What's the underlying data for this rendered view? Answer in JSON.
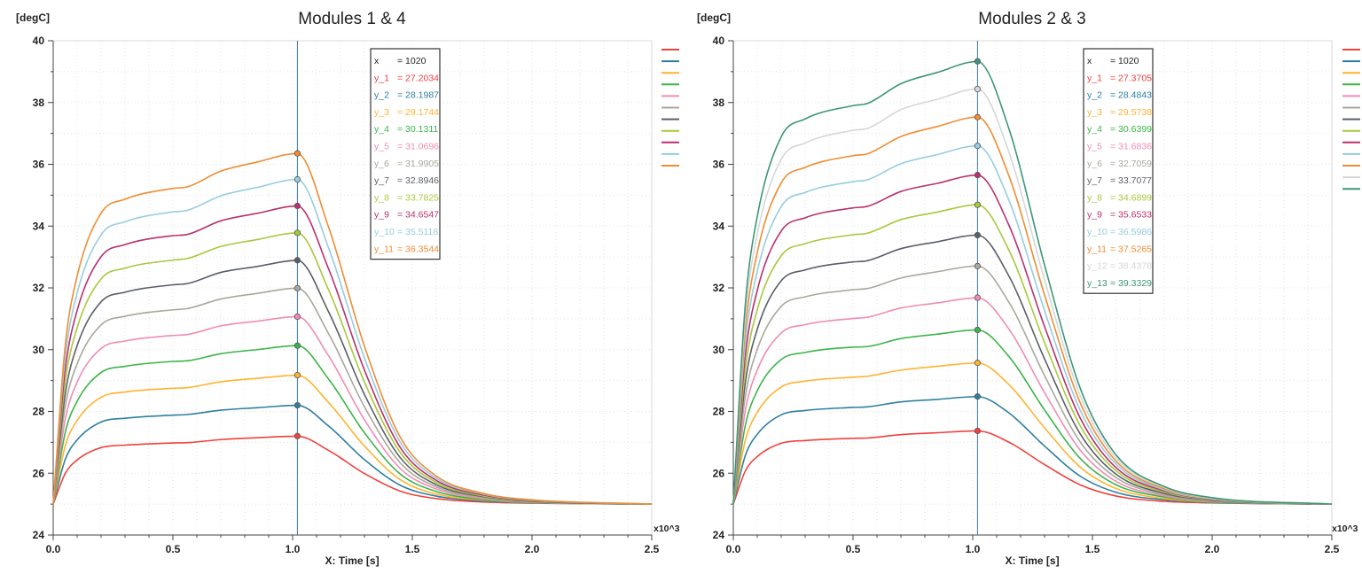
{
  "chart_data": [
    {
      "type": "line",
      "title": "Modules 1 & 4",
      "ylabel": "[degC]",
      "xlabel": "X: Time [s]",
      "x_multiplier": "x10^3",
      "xlim": [
        0,
        2500
      ],
      "ylim": [
        24,
        40
      ],
      "xticks": [
        "0.0",
        "0.5",
        "1.0",
        "1.5",
        "2.0",
        "2.5"
      ],
      "yticks": [
        "24",
        "26",
        "28",
        "30",
        "32",
        "34",
        "36",
        "38",
        "40"
      ],
      "grid": true,
      "legend_placement": "right",
      "cursor": {
        "x_label": "x",
        "x_value": "= 1020",
        "x": 1020
      },
      "x": [
        0,
        50,
        100,
        200,
        300,
        500,
        560,
        700,
        850,
        1020,
        1150,
        1300,
        1450,
        1600,
        1800,
        2000,
        2500
      ],
      "series": [
        {
          "name": "y_1",
          "color": "#f0413c",
          "cursor_value": "= 27.2034",
          "values": [
            25,
            25.99,
            26.43,
            26.83,
            26.91,
            26.98,
            26.99,
            27.09,
            27.15,
            27.2,
            26.74,
            25.99,
            25.42,
            25.18,
            25.07,
            25.03,
            25
          ]
        },
        {
          "name": "y_2",
          "color": "#2e7fa0",
          "cursor_value": "= 28.1987",
          "values": [
            25,
            26.44,
            27.08,
            27.66,
            27.78,
            27.88,
            27.9,
            28.04,
            28.12,
            28.2,
            27.53,
            26.44,
            25.61,
            25.26,
            25.1,
            25.04,
            25
          ]
        },
        {
          "name": "y_3",
          "color": "#ffb32e",
          "cursor_value": "= 29.1744",
          "values": [
            25,
            26.88,
            27.71,
            28.46,
            28.63,
            28.75,
            28.77,
            28.96,
            29.07,
            29.17,
            28.29,
            26.88,
            25.79,
            25.33,
            25.13,
            25.05,
            25
          ]
        },
        {
          "name": "y_4",
          "color": "#3cb449",
          "cursor_value": "= 30.1311",
          "values": [
            25,
            27.31,
            28.33,
            29.26,
            29.46,
            29.62,
            29.64,
            29.87,
            30.0,
            30.13,
            29.05,
            27.31,
            25.97,
            25.41,
            25.15,
            25.06,
            25
          ]
        },
        {
          "name": "y_5",
          "color": "#f08cb4",
          "cursor_value": "= 31.0696",
          "values": [
            25,
            27.73,
            28.95,
            30.04,
            30.28,
            30.46,
            30.49,
            30.77,
            30.92,
            31.07,
            29.8,
            27.73,
            26.15,
            25.49,
            25.18,
            25.07,
            25
          ]
        },
        {
          "name": "y_6",
          "color": "#a8a89c",
          "cursor_value": "= 31.9905",
          "values": [
            25,
            28.15,
            29.54,
            30.8,
            31.08,
            31.29,
            31.33,
            31.64,
            31.82,
            31.99,
            30.52,
            28.15,
            26.33,
            25.56,
            25.21,
            25.08,
            25
          ]
        },
        {
          "name": "y_7",
          "color": "#5a5f68",
          "cursor_value": "= 32.8946",
          "values": [
            25,
            28.55,
            30.13,
            31.55,
            31.86,
            32.1,
            32.14,
            32.5,
            32.69,
            32.89,
            31.23,
            28.55,
            26.5,
            25.63,
            25.24,
            25.09,
            25
          ]
        },
        {
          "name": "y_8",
          "color": "#a8c83c",
          "cursor_value": "= 33.7825",
          "values": [
            25,
            28.95,
            30.71,
            32.29,
            32.64,
            32.9,
            32.95,
            33.34,
            33.56,
            33.78,
            31.94,
            28.95,
            26.67,
            25.7,
            25.26,
            25.11,
            25
          ]
        },
        {
          "name": "y_9",
          "color": "#b8306e",
          "cursor_value": "= 34.6547",
          "values": [
            25,
            29.34,
            31.27,
            33.01,
            33.4,
            33.69,
            33.73,
            34.17,
            34.41,
            34.65,
            32.62,
            29.34,
            26.83,
            25.77,
            25.29,
            25.12,
            25
          ]
        },
        {
          "name": "y_10",
          "color": "#96cde0",
          "cursor_value": "= 35.5118",
          "values": [
            25,
            29.73,
            31.83,
            33.72,
            34.14,
            34.46,
            34.51,
            34.98,
            35.25,
            35.51,
            33.3,
            29.73,
            27.0,
            25.84,
            25.32,
            25.13,
            25
          ]
        },
        {
          "name": "y_11",
          "color": "#f08c32",
          "cursor_value": "= 36.3544",
          "values": [
            25,
            30.11,
            32.38,
            34.42,
            34.87,
            35.22,
            35.27,
            35.78,
            36.07,
            36.35,
            33.97,
            30.11,
            27.16,
            25.91,
            25.34,
            25.14,
            25
          ]
        }
      ]
    },
    {
      "type": "line",
      "title": "Modules 2 & 3",
      "ylabel": "[degC]",
      "xlabel": "X: Time [s]",
      "x_multiplier": "x10^3",
      "xlim": [
        0,
        2500
      ],
      "ylim": [
        24,
        40
      ],
      "xticks": [
        "0.0",
        "0.5",
        "1.0",
        "1.5",
        "2.0",
        "2.5"
      ],
      "yticks": [
        "24",
        "26",
        "28",
        "30",
        "32",
        "34",
        "36",
        "38",
        "40"
      ],
      "grid": true,
      "legend_placement": "right",
      "cursor": {
        "x_label": "x",
        "x_value": "= 1020",
        "x": 1020
      },
      "x": [
        0,
        50,
        100,
        200,
        300,
        500,
        560,
        700,
        850,
        1020,
        1150,
        1300,
        1450,
        1600,
        1800,
        2000,
        2500
      ],
      "series": [
        {
          "name": "y_1",
          "color": "#f0413c",
          "cursor_value": "= 27.3705",
          "values": [
            25,
            26.07,
            26.54,
            26.97,
            27.06,
            27.13,
            27.14,
            27.25,
            27.31,
            27.37,
            27.01,
            26.28,
            25.62,
            25.26,
            25.09,
            25.04,
            25
          ]
        },
        {
          "name": "y_2",
          "color": "#2e7fa0",
          "cursor_value": "= 28.4843",
          "values": [
            25,
            26.57,
            27.26,
            27.89,
            28.03,
            28.13,
            28.15,
            28.31,
            28.39,
            28.48,
            27.96,
            26.88,
            25.9,
            25.38,
            25.14,
            25.05,
            25
          ]
        },
        {
          "name": "y_3",
          "color": "#ffb32e",
          "cursor_value": "= 29.5738",
          "values": [
            25,
            27.06,
            27.97,
            28.79,
            28.98,
            29.11,
            29.14,
            29.34,
            29.46,
            29.57,
            28.88,
            27.47,
            26.19,
            25.5,
            25.18,
            25.07,
            25
          ]
        },
        {
          "name": "y_4",
          "color": "#3cb449",
          "cursor_value": "= 30.6399",
          "values": [
            25,
            27.54,
            28.67,
            29.68,
            29.91,
            30.08,
            30.1,
            30.36,
            30.5,
            30.64,
            29.79,
            28.05,
            26.47,
            25.62,
            25.23,
            25.08,
            25
          ]
        },
        {
          "name": "y_5",
          "color": "#f08cb4",
          "cursor_value": "= 31.6836",
          "values": [
            25,
            28.01,
            29.34,
            30.54,
            30.81,
            31.01,
            31.05,
            31.35,
            31.51,
            31.68,
            30.68,
            28.61,
            26.74,
            25.73,
            25.27,
            25.1,
            25
          ]
        },
        {
          "name": "y_6",
          "color": "#a8a89c",
          "cursor_value": "= 32.7059",
          "values": [
            25,
            28.47,
            30.01,
            31.4,
            31.71,
            31.94,
            31.98,
            32.32,
            32.52,
            32.71,
            31.55,
            29.16,
            27.0,
            25.85,
            25.31,
            25.12,
            25
          ]
        },
        {
          "name": "y_7",
          "color": "#5a5f68",
          "cursor_value": "= 33.7077",
          "values": [
            25,
            28.92,
            30.66,
            32.23,
            32.58,
            32.84,
            32.88,
            33.27,
            33.49,
            33.71,
            32.4,
            29.7,
            27.26,
            25.96,
            25.35,
            25.13,
            25
          ]
        },
        {
          "name": "y_8",
          "color": "#a8c83c",
          "cursor_value": "= 34.6899",
          "values": [
            25,
            29.36,
            31.3,
            33.04,
            33.43,
            33.72,
            33.77,
            34.21,
            34.45,
            34.69,
            33.24,
            30.23,
            27.52,
            26.07,
            25.39,
            25.15,
            25
          ]
        },
        {
          "name": "y_9",
          "color": "#b8306e",
          "cursor_value": "= 35.6533",
          "values": [
            25,
            29.79,
            31.92,
            33.84,
            34.27,
            34.59,
            34.64,
            35.12,
            35.38,
            35.65,
            34.05,
            30.75,
            27.77,
            26.17,
            25.43,
            25.16,
            25
          ]
        },
        {
          "name": "y_10",
          "color": "#96cde0",
          "cursor_value": "= 36.5986",
          "values": [
            25,
            30.22,
            32.54,
            34.63,
            35.09,
            35.44,
            35.5,
            36.02,
            36.31,
            36.6,
            34.86,
            31.26,
            28.02,
            26.28,
            25.46,
            25.17,
            25
          ]
        },
        {
          "name": "y_11",
          "color": "#f08c32",
          "cursor_value": "= 37.5265",
          "values": [
            25,
            30.64,
            33.14,
            35.4,
            35.9,
            36.28,
            36.34,
            36.9,
            37.22,
            37.53,
            35.65,
            31.77,
            28.26,
            26.38,
            25.5,
            25.19,
            25
          ]
        },
        {
          "name": "y_12",
          "color": "#d4d8d8",
          "cursor_value": "= 38.4378",
          "values": [
            25,
            31.05,
            33.74,
            36.16,
            36.69,
            37.1,
            37.16,
            37.77,
            38.1,
            38.44,
            36.42,
            32.26,
            28.49,
            26.48,
            25.54,
            25.2,
            25
          ]
        },
        {
          "name": "y_13",
          "color": "#3c9678",
          "cursor_value": "= 39.3329",
          "values": [
            25,
            31.45,
            34.31,
            36.89,
            37.47,
            37.9,
            37.97,
            38.61,
            38.97,
            39.33,
            37.18,
            32.74,
            28.73,
            26.58,
            25.57,
            25.21,
            25
          ]
        }
      ]
    }
  ]
}
